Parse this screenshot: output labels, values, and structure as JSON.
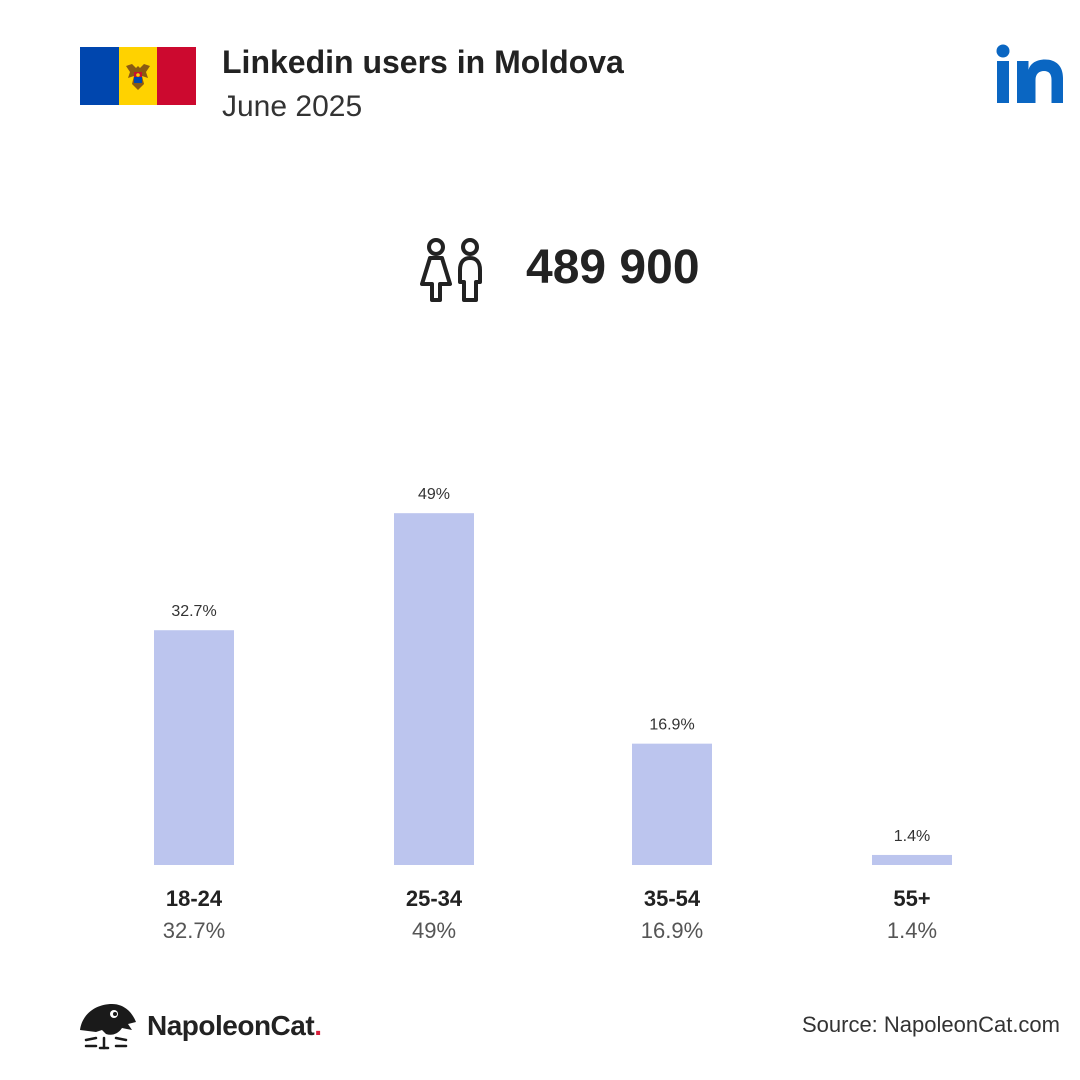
{
  "header": {
    "title": "Linkedin users in Moldova",
    "subtitle": "June 2025",
    "flag_colors": [
      "#0046ae",
      "#ffd200",
      "#cc092f"
    ],
    "flag_icon": "moldova-flag-icon",
    "logo_icon": "linkedin-logo-icon",
    "logo_color": "#0a66c2"
  },
  "summary": {
    "icon": "users-icon",
    "total_users": "489 900"
  },
  "chart_data": {
    "type": "bar",
    "categories": [
      "18-24",
      "25-34",
      "35-54",
      "55+"
    ],
    "values": [
      32.7,
      49,
      16.9,
      1.4
    ],
    "value_labels": [
      "32.7%",
      "49%",
      "16.9%",
      "1.4%"
    ],
    "bar_color": "#bcc5ee",
    "grid": false,
    "legend": "none"
  },
  "footer": {
    "brand_name": "NapoleonCat",
    "brand_dot": ".",
    "brand_icon": "napoleoncat-logo-icon",
    "source": "Source: NapoleonCat.com"
  }
}
